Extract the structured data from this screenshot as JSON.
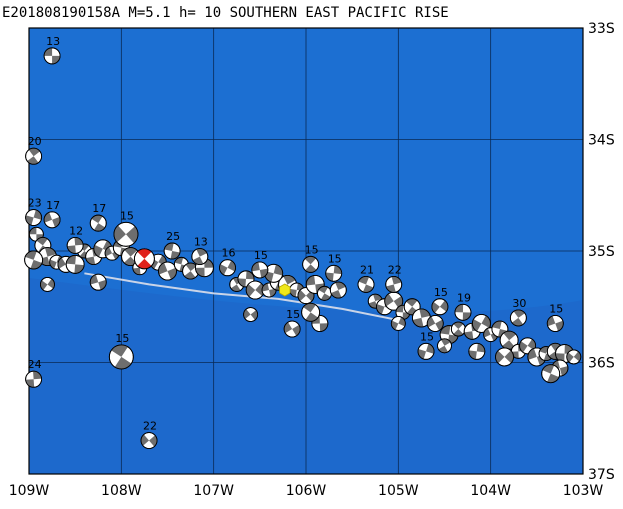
{
  "title": "E201808190158A M=5.1 h= 10 SOUTHERN EAST PACIFIC RISE",
  "colors": {
    "ocean": "#1c6fd2",
    "ocean_deep": "#1f64c6",
    "ridge_line": "#c9d4e8",
    "mech_dark": "#6e6e6e",
    "mech_light": "#ffffff",
    "target": "#e0211b",
    "epicenter": "#f0e81a"
  },
  "axes": {
    "x_ticks": [
      "109W",
      "108W",
      "107W",
      "106W",
      "105W",
      "104W",
      "103W"
    ],
    "y_ticks": [
      "33S",
      "34S",
      "35S",
      "36S",
      "37S"
    ],
    "lon_range": [
      -109,
      -103
    ],
    "lat_range": [
      -33,
      -37
    ]
  },
  "labeled_mechanisms": [
    {
      "label": "13",
      "lon": -108.75,
      "lat": -33.25
    },
    {
      "label": "20",
      "lon": -108.95,
      "lat": -34.15
    },
    {
      "label": "23",
      "lon": -108.95,
      "lat": -34.7
    },
    {
      "label": "17",
      "lon": -108.75,
      "lat": -34.72
    },
    {
      "label": "17",
      "lon": -108.25,
      "lat": -34.75
    },
    {
      "label": "12",
      "lon": -108.5,
      "lat": -34.95
    },
    {
      "label": "15",
      "lon": -107.95,
      "lat": -34.85
    },
    {
      "label": "25",
      "lon": -107.45,
      "lat": -35.0
    },
    {
      "label": "13",
      "lon": -107.15,
      "lat": -35.05
    },
    {
      "label": "16",
      "lon": -106.85,
      "lat": -35.15
    },
    {
      "label": "15",
      "lon": -106.5,
      "lat": -35.17
    },
    {
      "label": "15",
      "lon": -105.95,
      "lat": -35.12
    },
    {
      "label": "15",
      "lon": -105.7,
      "lat": -35.2
    },
    {
      "label": "15",
      "lon": -106.15,
      "lat": -35.7
    },
    {
      "label": "21",
      "lon": -105.35,
      "lat": -35.3
    },
    {
      "label": "22",
      "lon": -105.05,
      "lat": -35.3
    },
    {
      "label": "15",
      "lon": -104.55,
      "lat": -35.5
    },
    {
      "label": "19",
      "lon": -104.3,
      "lat": -35.55
    },
    {
      "label": "30",
      "lon": -103.7,
      "lat": -35.6
    },
    {
      "label": "15",
      "lon": -104.7,
      "lat": -35.9
    },
    {
      "label": "15",
      "lon": -103.3,
      "lat": -35.65
    },
    {
      "label": "15",
      "lon": -108.0,
      "lat": -35.95
    },
    {
      "label": "24",
      "lon": -108.95,
      "lat": -36.15
    },
    {
      "label": "22",
      "lon": -107.7,
      "lat": -36.7
    }
  ],
  "unlabeled_mechanisms": [
    {
      "lon": -108.92,
      "lat": -34.85
    },
    {
      "lon": -108.85,
      "lat": -34.95
    },
    {
      "lon": -108.8,
      "lat": -35.05
    },
    {
      "lon": -108.7,
      "lat": -35.1
    },
    {
      "lon": -108.6,
      "lat": -35.12
    },
    {
      "lon": -108.5,
      "lat": -35.12
    },
    {
      "lon": -108.4,
      "lat": -35.0
    },
    {
      "lon": -108.3,
      "lat": -35.05
    },
    {
      "lon": -108.2,
      "lat": -34.98
    },
    {
      "lon": -108.1,
      "lat": -35.02
    },
    {
      "lon": -108.0,
      "lat": -34.97
    },
    {
      "lon": -107.9,
      "lat": -35.05
    },
    {
      "lon": -107.8,
      "lat": -35.15
    },
    {
      "lon": -107.6,
      "lat": -35.1
    },
    {
      "lon": -107.5,
      "lat": -35.18
    },
    {
      "lon": -107.35,
      "lat": -35.12
    },
    {
      "lon": -107.25,
      "lat": -35.18
    },
    {
      "lon": -107.1,
      "lat": -35.15
    },
    {
      "lon": -108.8,
      "lat": -35.3
    },
    {
      "lon": -108.25,
      "lat": -35.28
    },
    {
      "lon": -108.95,
      "lat": -35.08
    },
    {
      "lon": -106.75,
      "lat": -35.3
    },
    {
      "lon": -106.65,
      "lat": -35.25
    },
    {
      "lon": -106.55,
      "lat": -35.35
    },
    {
      "lon": -106.4,
      "lat": -35.35
    },
    {
      "lon": -106.3,
      "lat": -35.28
    },
    {
      "lon": -106.2,
      "lat": -35.3
    },
    {
      "lon": -106.1,
      "lat": -35.35
    },
    {
      "lon": -106.0,
      "lat": -35.4
    },
    {
      "lon": -105.9,
      "lat": -35.3
    },
    {
      "lon": -105.8,
      "lat": -35.38
    },
    {
      "lon": -105.65,
      "lat": -35.35
    },
    {
      "lon": -106.35,
      "lat": -35.2
    },
    {
      "lon": -106.6,
      "lat": -35.57
    },
    {
      "lon": -105.85,
      "lat": -35.65
    },
    {
      "lon": -105.95,
      "lat": -35.55
    },
    {
      "lon": -105.25,
      "lat": -35.45
    },
    {
      "lon": -105.15,
      "lat": -35.5
    },
    {
      "lon": -105.05,
      "lat": -35.45
    },
    {
      "lon": -104.95,
      "lat": -35.55
    },
    {
      "lon": -104.85,
      "lat": -35.5
    },
    {
      "lon": -104.75,
      "lat": -35.6
    },
    {
      "lon": -105.0,
      "lat": -35.65
    },
    {
      "lon": -104.6,
      "lat": -35.65
    },
    {
      "lon": -104.45,
      "lat": -35.75
    },
    {
      "lon": -104.35,
      "lat": -35.7
    },
    {
      "lon": -104.2,
      "lat": -35.72
    },
    {
      "lon": -104.1,
      "lat": -35.65
    },
    {
      "lon": -104.0,
      "lat": -35.75
    },
    {
      "lon": -103.9,
      "lat": -35.7
    },
    {
      "lon": -103.8,
      "lat": -35.8
    },
    {
      "lon": -103.7,
      "lat": -35.9
    },
    {
      "lon": -103.6,
      "lat": -35.85
    },
    {
      "lon": -103.5,
      "lat": -35.95
    },
    {
      "lon": -103.4,
      "lat": -35.92
    },
    {
      "lon": -103.3,
      "lat": -35.9
    },
    {
      "lon": -103.2,
      "lat": -35.92
    },
    {
      "lon": -103.1,
      "lat": -35.95
    },
    {
      "lon": -103.25,
      "lat": -36.05
    },
    {
      "lon": -103.35,
      "lat": -36.1
    },
    {
      "lon": -104.5,
      "lat": -35.85
    },
    {
      "lon": -104.15,
      "lat": -35.9
    },
    {
      "lon": -103.85,
      "lat": -35.95
    }
  ],
  "target_event": {
    "lon": -107.75,
    "lat": -35.07
  },
  "epicenter": {
    "lon": -106.23,
    "lat": -35.35
  },
  "ridge_line": [
    {
      "lon": -108.4,
      "lat": -35.2
    },
    {
      "lon": -107.7,
      "lat": -35.3
    },
    {
      "lon": -107.0,
      "lat": -35.38
    },
    {
      "lon": -106.3,
      "lat": -35.43
    },
    {
      "lon": -105.6,
      "lat": -35.52
    },
    {
      "lon": -105.0,
      "lat": -35.62
    }
  ]
}
